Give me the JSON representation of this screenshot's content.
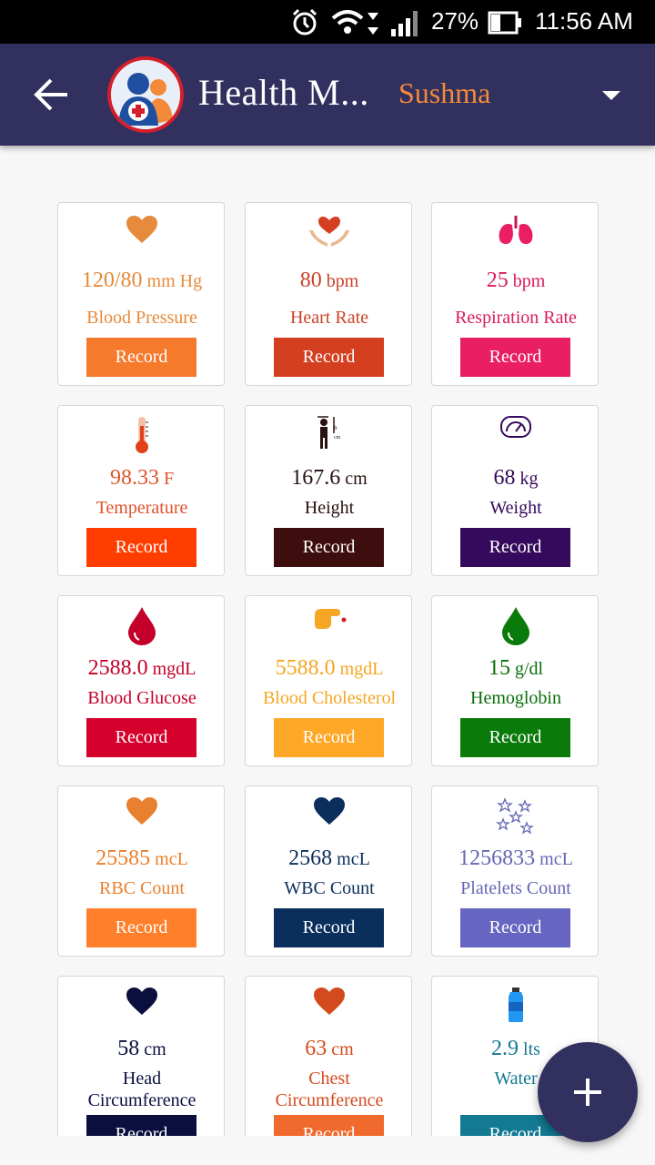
{
  "status": {
    "battery": "27%",
    "time": "11:56 AM"
  },
  "header": {
    "title": "Health M...",
    "user": "Sushma"
  },
  "cards": [
    {
      "value": "120/80",
      "unit": " mm Hg",
      "label": "Blood Pressure",
      "record": "Record",
      "color": "#f57a2c",
      "textColor": "#e68a3c",
      "icon": "heart-icon"
    },
    {
      "value": "80",
      "unit": " bpm",
      "label": "Heart Rate",
      "record": "Record",
      "color": "#d43f1f",
      "textColor": "#c9432a",
      "icon": "heart-hands-icon"
    },
    {
      "value": "25",
      "unit": " bpm",
      "label": "Respiration Rate",
      "record": "Record",
      "color": "#e91e63",
      "textColor": "#d81b60",
      "icon": "lungs-icon"
    },
    {
      "value": "98.33",
      "unit": " F",
      "label": "Temperature",
      "record": "Record",
      "color": "#ff3d00",
      "textColor": "#e0532a",
      "icon": "thermometer-icon"
    },
    {
      "value": "167.6",
      "unit": " cm",
      "label": "Height",
      "record": "Record",
      "color": "#3e0d0d",
      "textColor": "#2a1010",
      "icon": "height-icon"
    },
    {
      "value": "68",
      "unit": " kg",
      "label": "Weight",
      "record": "Record",
      "color": "#35095c",
      "textColor": "#35095c",
      "icon": "scale-icon"
    },
    {
      "value": "2588.0",
      "unit": " mgdL",
      "label": "Blood Glucose",
      "record": "Record",
      "color": "#d5002c",
      "textColor": "#c4002a",
      "icon": "blood-drop-icon"
    },
    {
      "value": "5588.0",
      "unit": " mgdL",
      "label": "Blood Cholesterol",
      "record": "Record",
      "color": "#ffa726",
      "textColor": "#f5a623",
      "icon": "finger-prick-icon"
    },
    {
      "value": "15",
      "unit": " g/dl",
      "label": "Hemoglobin",
      "record": "Record",
      "color": "#0a7a0a",
      "textColor": "#0a6e0a",
      "icon": "green-drop-icon"
    },
    {
      "value": "25585",
      "unit": " mcL",
      "label": "RBC Count",
      "record": "Record",
      "color": "#ff7f2a",
      "textColor": "#e8802f",
      "icon": "heart-icon"
    },
    {
      "value": "2568",
      "unit": " mcL",
      "label": "WBC Count",
      "record": "Record",
      "color": "#0a2f5c",
      "textColor": "#0a2f5c",
      "icon": "heart-icon"
    },
    {
      "value": "1256833",
      "unit": " mcL",
      "label": "Platelets Count",
      "record": "Record",
      "color": "#6666c2",
      "textColor": "#6666b5",
      "icon": "stars-icon"
    },
    {
      "value": "58",
      "unit": " cm",
      "label": "Head Circumference",
      "record": "Record",
      "color": "#0a0f3e",
      "textColor": "#0a0f3e",
      "icon": "heart-icon"
    },
    {
      "value": "63",
      "unit": " cm",
      "label": "Chest Circumference",
      "record": "Record",
      "color": "#ef6a2c",
      "textColor": "#d44a1f",
      "icon": "heart-icon"
    },
    {
      "value": "2.9",
      "unit": " lts",
      "label": "Water",
      "record": "Record",
      "color": "#127a92",
      "textColor": "#127a92",
      "icon": "water-bottle-icon"
    }
  ]
}
